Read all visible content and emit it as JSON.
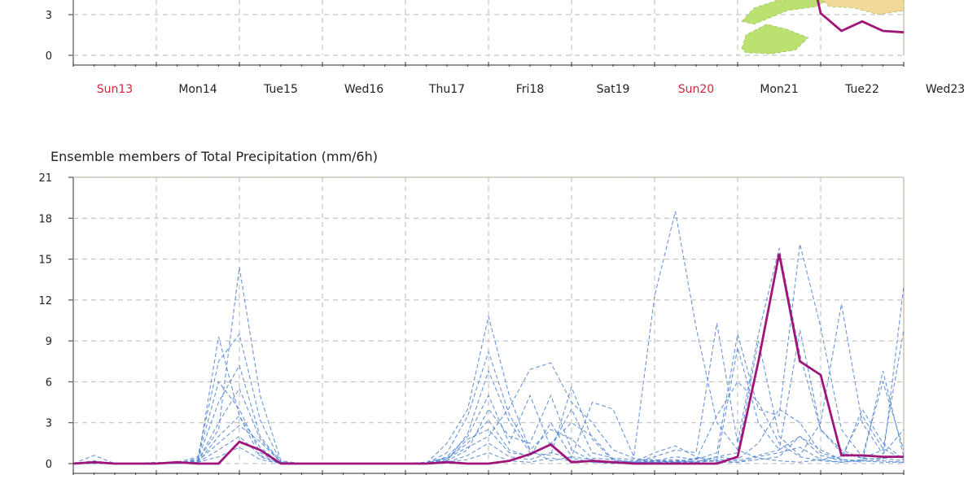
{
  "chart_data": [
    {
      "type": "area",
      "title": "",
      "xlabel": "",
      "ylabel": "",
      "ylim": [
        0,
        6
      ],
      "yticks": [
        0,
        3
      ],
      "x_categories": [
        "Sun13",
        "Mon14",
        "Tue15",
        "Wed16",
        "Thu17",
        "Fri18",
        "Sat19",
        "Sun20",
        "Mon21",
        "Tue22",
        "Wed23"
      ],
      "sundays": [
        "Sun13",
        "Sun20"
      ],
      "grid": true,
      "series": [
        {
          "role": "control",
          "color": "#a0157a",
          "x": [
            8.9,
            9.0,
            9.25,
            9.5,
            9.75,
            10.0
          ],
          "y": [
            5.8,
            3.1,
            1.8,
            2.5,
            1.8,
            1.7
          ]
        }
      ],
      "envelope_colors": [
        "#b8e06a",
        "#d9b15a",
        "#f2d896"
      ]
    },
    {
      "type": "line",
      "title": "Ensemble members of Total Precipitation (mm/6h)",
      "xlabel": "",
      "ylabel": "",
      "ylim": [
        0,
        21
      ],
      "yticks": [
        0,
        3,
        6,
        9,
        12,
        15,
        18,
        21
      ],
      "x_categories": [
        "Sun13",
        "Mon14",
        "Tue15",
        "Wed16",
        "Thu17",
        "Fri18",
        "Sat19",
        "Sun20",
        "Mon21",
        "Tue22",
        "Wed23"
      ],
      "sundays": [
        "Sun13",
        "Sun20"
      ],
      "grid": true,
      "control_color": "#a0157a",
      "member_color": "#4f84d0",
      "control": {
        "x": [
          0.0,
          0.25,
          0.5,
          0.75,
          1.0,
          1.25,
          1.5,
          1.75,
          2.0,
          2.25,
          2.5,
          2.75,
          3.0,
          3.25,
          3.5,
          3.75,
          4.0,
          4.25,
          4.5,
          4.75,
          5.0,
          5.25,
          5.5,
          5.75,
          6.0,
          6.25,
          6.5,
          6.75,
          7.0,
          7.25,
          7.5,
          7.75,
          8.0,
          8.25,
          8.5,
          8.75,
          9.0,
          9.25,
          9.5,
          9.75,
          10.0
        ],
        "y": [
          0.0,
          0.1,
          0.0,
          0.0,
          0.0,
          0.1,
          0.0,
          0.0,
          1.6,
          1.0,
          0.0,
          0.0,
          0.0,
          0.0,
          0.0,
          0.0,
          0.0,
          0.0,
          0.1,
          0.0,
          0.0,
          0.2,
          0.7,
          1.4,
          0.1,
          0.2,
          0.1,
          0.0,
          0.0,
          0.0,
          0.0,
          0.0,
          0.5,
          7.5,
          15.4,
          7.5,
          6.5,
          0.6,
          0.6,
          0.5,
          0.5
        ]
      },
      "members": [
        {
          "x": [
            0.0,
            0.25,
            0.5,
            0.75,
            1.0,
            1.25,
            1.5,
            1.75,
            2.0,
            2.25,
            2.5,
            2.75,
            3.0,
            3.25,
            3.5,
            3.75,
            4.0,
            4.25,
            4.5,
            4.75,
            5.0,
            5.25,
            5.5,
            5.75,
            6.0,
            6.25,
            6.5,
            6.75,
            7.0,
            7.25,
            7.5,
            7.75,
            8.0,
            8.25,
            8.5,
            8.75,
            9.0,
            9.25,
            9.5,
            9.75,
            10.0
          ],
          "y": [
            0,
            0.6,
            0,
            0,
            0,
            0,
            0.1,
            9.3,
            3.5,
            0.5,
            0,
            0,
            0,
            0,
            0,
            0,
            0,
            0,
            0.4,
            1.2,
            2.0,
            4.1,
            6.9,
            7.4,
            4.5,
            3.0,
            1.0,
            0.4,
            0.2,
            0.1,
            0.1,
            0.2,
            0.1,
            0.5,
            0.8,
            1.2,
            0.3,
            0.1,
            0.2,
            0.1,
            0.1
          ]
        },
        {
          "x": [
            0.0,
            0.25,
            0.5,
            0.75,
            1.0,
            1.25,
            1.5,
            1.75,
            2.0,
            2.25,
            2.5,
            2.75,
            3.0,
            3.25,
            3.5,
            3.75,
            4.0,
            4.25,
            4.5,
            4.75,
            5.0,
            5.25,
            5.5,
            5.75,
            6.0,
            6.25,
            6.5,
            6.75,
            7.0,
            7.25,
            7.5,
            7.75,
            8.0,
            8.25,
            8.5,
            8.75,
            9.0,
            9.25,
            9.5,
            9.75,
            10.0
          ],
          "y": [
            0,
            0.1,
            0,
            0,
            0,
            0,
            0.2,
            2.5,
            14.4,
            5.0,
            0.2,
            0,
            0,
            0,
            0,
            0,
            0,
            0,
            1.5,
            4.0,
            10.8,
            5.0,
            1.0,
            0.2,
            0.5,
            4.5,
            4.0,
            0.5,
            12.3,
            18.5,
            10.0,
            3.0,
            1.0,
            0.4,
            0.2,
            0.1,
            0.3,
            0.5,
            3.5,
            1.1,
            0.3
          ]
        },
        {
          "x": [
            0.0,
            0.25,
            0.5,
            0.75,
            1.0,
            1.25,
            1.5,
            1.75,
            2.0,
            2.25,
            2.5,
            2.75,
            3.0,
            3.25,
            3.5,
            3.75,
            4.0,
            4.25,
            4.5,
            4.75,
            5.0,
            5.25,
            5.5,
            5.75,
            6.0,
            6.25,
            6.5,
            6.75,
            7.0,
            7.25,
            7.5,
            7.75,
            8.0,
            8.25,
            8.5,
            8.75,
            9.0,
            9.25,
            9.5,
            9.75,
            10.0
          ],
          "y": [
            0,
            0,
            0,
            0,
            0,
            0.1,
            0.5,
            7.5,
            9.5,
            3.2,
            0.1,
            0,
            0,
            0,
            0,
            0,
            0,
            0,
            0.2,
            2.2,
            6.8,
            3.1,
            0.8,
            0.6,
            5.6,
            1.8,
            0.2,
            0.1,
            0.5,
            1.0,
            0.8,
            10.3,
            1.5,
            9.5,
            15.8,
            8.0,
            2.5,
            1.0,
            0.4,
            0.3,
            13.0
          ]
        },
        {
          "x": [
            0.0,
            0.25,
            0.5,
            0.75,
            1.0,
            1.25,
            1.5,
            1.75,
            2.0,
            2.25,
            2.5,
            2.75,
            3.0,
            3.25,
            3.5,
            3.75,
            4.0,
            4.25,
            4.5,
            4.75,
            5.0,
            5.25,
            5.5,
            5.75,
            6.0,
            6.25,
            6.5,
            6.75,
            7.0,
            7.25,
            7.5,
            7.75,
            8.0,
            8.25,
            8.5,
            8.75,
            9.0,
            9.25,
            9.5,
            9.75,
            10.0
          ],
          "y": [
            0,
            0,
            0,
            0,
            0,
            0,
            0.3,
            4.5,
            7.2,
            2.0,
            0.1,
            0,
            0,
            0,
            0,
            0,
            0,
            0,
            0.8,
            3.5,
            8.2,
            3.6,
            1.0,
            2.5,
            1.8,
            0.4,
            0.3,
            0.1,
            0.2,
            0.5,
            0.3,
            0.8,
            9.5,
            4.0,
            3.5,
            16.1,
            10.0,
            2.5,
            0.5,
            6.0,
            1.0
          ]
        },
        {
          "x": [
            0.0,
            0.25,
            0.5,
            0.75,
            1.0,
            1.25,
            1.5,
            1.75,
            2.0,
            2.25,
            2.5,
            2.75,
            3.0,
            3.25,
            3.5,
            3.75,
            4.0,
            4.25,
            4.5,
            4.75,
            5.0,
            5.25,
            5.5,
            5.75,
            6.0,
            6.25,
            6.5,
            6.75,
            7.0,
            7.25,
            7.5,
            7.75,
            8.0,
            8.25,
            8.5,
            8.75,
            9.0,
            9.25,
            9.5,
            9.75,
            10.0
          ],
          "y": [
            0,
            0.2,
            0,
            0,
            0,
            0.1,
            0.2,
            3.0,
            5.5,
            1.8,
            0.1,
            0,
            0,
            0,
            0,
            0,
            0,
            0,
            0.5,
            2.0,
            5.0,
            1.5,
            5.0,
            1.2,
            4.0,
            0.8,
            0.4,
            0.3,
            0.1,
            0.2,
            0.1,
            0.5,
            0.8,
            9.0,
            2.0,
            0.6,
            3.0,
            11.7,
            3.0,
            0.7,
            2.5
          ]
        },
        {
          "x": [
            0.0,
            0.25,
            0.5,
            0.75,
            1.0,
            1.25,
            1.5,
            1.75,
            2.0,
            2.25,
            2.5,
            2.75,
            3.0,
            3.25,
            3.5,
            3.75,
            4.0,
            4.25,
            4.5,
            4.75,
            5.0,
            5.25,
            5.5,
            5.75,
            6.0,
            6.25,
            6.5,
            6.75,
            7.0,
            7.25,
            7.5,
            7.75,
            8.0,
            8.25,
            8.5,
            8.75,
            9.0,
            9.25,
            9.5,
            9.75,
            10.0
          ],
          "y": [
            0,
            0,
            0,
            0,
            0.1,
            0,
            0.1,
            2.0,
            3.5,
            1.2,
            0,
            0,
            0,
            0,
            0,
            0,
            0,
            0.1,
            0.4,
            1.5,
            3.2,
            1.0,
            0.5,
            3.0,
            0.5,
            0.3,
            0.1,
            0.2,
            0.3,
            0.1,
            0.4,
            0.3,
            0.2,
            0.6,
            1.0,
            9.8,
            2.5,
            0.8,
            0.4,
            1.0,
            9.8
          ]
        },
        {
          "x": [
            0.0,
            0.25,
            0.5,
            0.75,
            1.0,
            1.25,
            1.5,
            1.75,
            2.0,
            2.25,
            2.5,
            2.75,
            3.0,
            3.25,
            3.5,
            3.75,
            4.0,
            4.25,
            4.5,
            4.75,
            5.0,
            5.25,
            5.5,
            5.75,
            6.0,
            6.25,
            6.5,
            6.75,
            7.0,
            7.25,
            7.5,
            7.75,
            8.0,
            8.25,
            8.5,
            8.75,
            9.0,
            9.25,
            9.5,
            9.75,
            10.0
          ],
          "y": [
            0,
            0,
            0,
            0,
            0,
            0,
            0.4,
            6.0,
            4.0,
            0.8,
            0,
            0,
            0,
            0,
            0,
            0,
            0,
            0,
            0.2,
            1.0,
            4.0,
            2.0,
            1.5,
            5.0,
            1.0,
            0.2,
            0.1,
            0.1,
            0.8,
            1.3,
            0.5,
            0.1,
            0.1,
            0.3,
            0.5,
            2.0,
            1.0,
            0.3,
            0.1,
            6.8,
            0.5
          ]
        },
        {
          "x": [
            0.0,
            0.25,
            0.5,
            0.75,
            1.0,
            1.25,
            1.5,
            1.75,
            2.0,
            2.25,
            2.5,
            2.75,
            3.0,
            3.25,
            3.5,
            3.75,
            4.0,
            4.25,
            4.5,
            4.75,
            5.0,
            5.25,
            5.5,
            5.75,
            6.0,
            6.25,
            6.5,
            6.75,
            7.0,
            7.25,
            7.5,
            7.75,
            8.0,
            8.25,
            8.5,
            8.75,
            9.0,
            9.25,
            9.5,
            9.75,
            10.0
          ],
          "y": [
            0,
            0.1,
            0,
            0,
            0,
            0,
            0.2,
            1.5,
            2.8,
            1.6,
            0.1,
            0,
            0,
            0,
            0,
            0,
            0,
            0,
            0.3,
            1.8,
            2.5,
            0.8,
            0.6,
            1.5,
            3.0,
            2.0,
            0.3,
            0.1,
            0.1,
            0.2,
            0.3,
            3.5,
            6.0,
            4.5,
            1.5,
            0.5,
            0.2,
            0.1,
            0.3,
            0.4,
            0.2
          ]
        },
        {
          "x": [
            0.0,
            0.25,
            0.5,
            0.75,
            1.0,
            1.25,
            1.5,
            1.75,
            2.0,
            2.25,
            2.5,
            2.75,
            3.0,
            3.25,
            3.5,
            3.75,
            4.0,
            4.25,
            4.5,
            4.75,
            5.0,
            5.25,
            5.5,
            5.75,
            6.0,
            6.25,
            6.5,
            6.75,
            7.0,
            7.25,
            7.5,
            7.75,
            8.0,
            8.25,
            8.5,
            8.75,
            9.0,
            9.25,
            9.5,
            9.75,
            10.0
          ],
          "y": [
            0,
            0,
            0,
            0,
            0,
            0,
            0.1,
            1.0,
            2.0,
            0.6,
            0,
            0,
            0,
            0,
            0,
            0,
            0,
            0,
            0.1,
            0.6,
            1.5,
            0.5,
            0.3,
            0.8,
            0.4,
            0.1,
            0.1,
            0.1,
            0.1,
            0.1,
            0.2,
            0.2,
            8.5,
            3.0,
            1.0,
            2.0,
            0.6,
            0.2,
            4.0,
            1.5,
            0.3
          ]
        },
        {
          "x": [
            0.0,
            0.25,
            0.5,
            0.75,
            1.0,
            1.25,
            1.5,
            1.75,
            2.0,
            2.25,
            2.5,
            2.75,
            3.0,
            3.25,
            3.5,
            3.75,
            4.0,
            4.25,
            4.5,
            4.75,
            5.0,
            5.25,
            5.5,
            5.75,
            6.0,
            6.25,
            6.5,
            6.75,
            7.0,
            7.25,
            7.5,
            7.75,
            8.0,
            8.25,
            8.5,
            8.75,
            9.0,
            9.25,
            9.5,
            9.75,
            10.0
          ],
          "y": [
            0,
            0,
            0,
            0,
            0,
            0,
            0.1,
            0.5,
            1.2,
            0.3,
            0,
            0,
            0,
            0,
            0,
            0,
            0,
            0,
            0.1,
            0.3,
            0.8,
            0.2,
            0.1,
            0.4,
            0.2,
            0.1,
            0,
            0,
            0.2,
            0.3,
            0.1,
            0.5,
            0.3,
            1.5,
            4.0,
            3.0,
            0.8,
            0.3,
            0.2,
            0.2,
            0.1
          ]
        }
      ]
    }
  ]
}
